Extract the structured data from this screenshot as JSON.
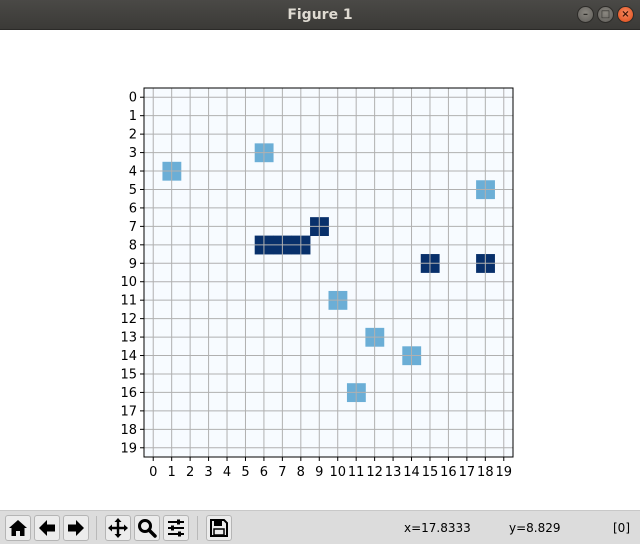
{
  "window": {
    "title": "Figure 1"
  },
  "chart_data": {
    "type": "heatmap",
    "title": "",
    "xlabel": "",
    "ylabel": "",
    "rows": 20,
    "cols": 20,
    "xlim": [
      -0.5,
      19.5
    ],
    "ylim": [
      19.5,
      -0.5
    ],
    "x_ticks": [
      0,
      1,
      2,
      3,
      4,
      5,
      6,
      7,
      8,
      9,
      10,
      11,
      12,
      13,
      14,
      15,
      16,
      17,
      18,
      19
    ],
    "y_ticks": [
      0,
      1,
      2,
      3,
      4,
      5,
      6,
      7,
      8,
      9,
      10,
      11,
      12,
      13,
      14,
      15,
      16,
      17,
      18,
      19
    ],
    "grid": true,
    "colormap": "Blues",
    "background_value": 0,
    "cells": [
      {
        "x": 1,
        "y": 4,
        "value": 0.5
      },
      {
        "x": 6,
        "y": 3,
        "value": 0.5
      },
      {
        "x": 18,
        "y": 5,
        "value": 0.5
      },
      {
        "x": 10,
        "y": 11,
        "value": 0.5
      },
      {
        "x": 12,
        "y": 13,
        "value": 0.5
      },
      {
        "x": 14,
        "y": 14,
        "value": 0.5
      },
      {
        "x": 11,
        "y": 16,
        "value": 0.5
      },
      {
        "x": 9,
        "y": 7,
        "value": 1
      },
      {
        "x": 6,
        "y": 8,
        "value": 1
      },
      {
        "x": 7,
        "y": 8,
        "value": 1
      },
      {
        "x": 8,
        "y": 8,
        "value": 1
      },
      {
        "x": 15,
        "y": 9,
        "value": 1
      },
      {
        "x": 18,
        "y": 9,
        "value": 1
      }
    ],
    "colors": {
      "background": "#f7fbff",
      "mid": "#6baed6",
      "high": "#08306b",
      "grid": "#b0b0b0"
    }
  },
  "toolbar": {
    "buttons": [
      {
        "name": "home-button",
        "icon": "home-icon"
      },
      {
        "name": "back-button",
        "icon": "back-arrow-icon"
      },
      {
        "name": "forward-button",
        "icon": "forward-arrow-icon"
      },
      {
        "name": "pan-button",
        "icon": "pan-move-icon"
      },
      {
        "name": "zoom-button",
        "icon": "zoom-magnifier-icon"
      },
      {
        "name": "configure-subplots-button",
        "icon": "sliders-icon"
      },
      {
        "name": "save-button",
        "icon": "save-disk-icon"
      }
    ],
    "x_readout": "x=17.8333",
    "y_readout": "y=8.829",
    "value_readout": "[0]"
  }
}
